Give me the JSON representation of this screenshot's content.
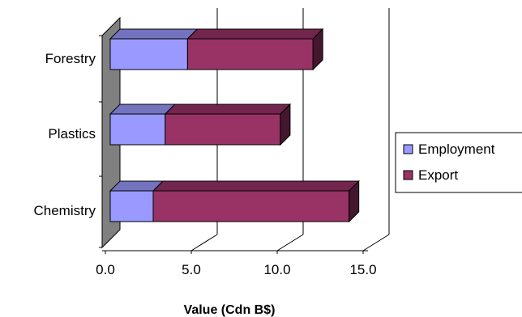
{
  "chart_data": {
    "type": "bar",
    "orientation": "horizontal",
    "style": "3d-stacked",
    "categories": [
      "Forestry",
      "Plastics",
      "Chemistry"
    ],
    "series": [
      {
        "name": "Employment",
        "values": [
          4.5,
          3.2,
          2.5
        ],
        "color": "#9999ff"
      },
      {
        "name": "Export",
        "values": [
          7.3,
          6.7,
          11.4
        ],
        "color": "#993366"
      }
    ],
    "xticks": [
      "0.0",
      "5.0",
      "10.0",
      "15.0"
    ],
    "xlim": [
      0,
      15
    ],
    "xlabel": "Value (Cdn B$)",
    "ylabel": "",
    "title": "",
    "grid": true,
    "legend_position": "right"
  }
}
